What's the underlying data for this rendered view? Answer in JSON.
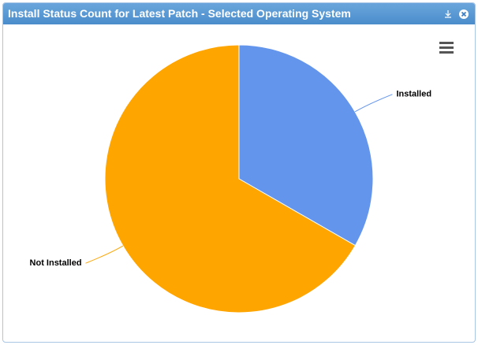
{
  "chart_data": {
    "type": "pie",
    "title": "Install Status Count for Latest Patch - Selected Operating System",
    "categories": [
      "Installed",
      "Not Installed"
    ],
    "values": [
      33.3,
      66.7
    ],
    "colors": [
      "#6495ed",
      "#ffa500"
    ]
  }
}
